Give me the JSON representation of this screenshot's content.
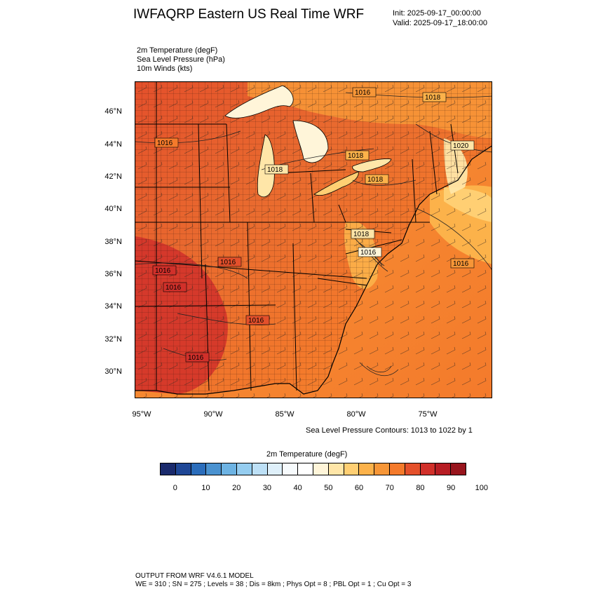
{
  "header": {
    "title": "IWFAQRP Eastern US Real Time WRF",
    "init": "Init: 2025-09-17_00:00:00",
    "valid": "Valid: 2025-09-17_18:00:00"
  },
  "fields": [
    {
      "text": "2m Temperature   (degF)"
    },
    {
      "text": "Sea Level Pressure   (hPa)"
    },
    {
      "text": "10m Winds   (kts)"
    }
  ],
  "map": {
    "lat_labels": [
      "46°N",
      "44°N",
      "42°N",
      "40°N",
      "38°N",
      "36°N",
      "34°N",
      "32°N",
      "30°N"
    ],
    "lon_labels": [
      "95°W",
      "90°W",
      "85°W",
      "80°W",
      "75°W"
    ],
    "isobar_labels": [
      {
        "text": "1016",
        "id": "isobar-ne-top"
      },
      {
        "text": "1018",
        "id": "isobar-maine"
      },
      {
        "text": "1016",
        "id": "isobar-iowa"
      },
      {
        "text": "1018",
        "id": "isobar-michigan"
      },
      {
        "text": "1018",
        "id": "isobar-ontario"
      },
      {
        "text": "1020",
        "id": "isobar-newengland"
      },
      {
        "text": "1018",
        "id": "isobar-ny"
      },
      {
        "text": "1016",
        "id": "isobar-atlantic"
      },
      {
        "text": "1016",
        "id": "isobar-ky"
      },
      {
        "text": "1016",
        "id": "isobar-ar"
      },
      {
        "text": "1016",
        "id": "isobar-ar2"
      },
      {
        "text": "1016",
        "id": "isobar-al"
      },
      {
        "text": "1016",
        "id": "isobar-la"
      },
      {
        "text": "1018",
        "id": "isobar-va"
      },
      {
        "text": "1016",
        "id": "isobar-va2"
      }
    ],
    "contour_info": "Sea Level Pressure Contours: 1013 to 1022 by 1"
  },
  "colorbar": {
    "title": "2m Temperature  (degF)",
    "colors": [
      "#1a2a6c",
      "#1f4796",
      "#2b6dbb",
      "#4a92d0",
      "#6db3e3",
      "#95cdf0",
      "#bde0f6",
      "#dff0fa",
      "#f7fbfd",
      "#ffffff",
      "#fff5d9",
      "#ffe6a8",
      "#ffcf73",
      "#fcb24a",
      "#f79637",
      "#f47a2b",
      "#e4502b",
      "#d1302a",
      "#b71d24",
      "#98151d"
    ],
    "labels": [
      "0",
      "10",
      "20",
      "30",
      "40",
      "50",
      "60",
      "70",
      "80",
      "90",
      "100"
    ]
  },
  "footer": {
    "line1": "OUTPUT FROM WRF V4.6.1 MODEL",
    "line2": "WE = 310 ; SN = 275 ; Levels = 38 ; Dis = 8km ; Phys Opt = 8 ; PBL Opt = 1 ; Cu Opt = 3"
  }
}
